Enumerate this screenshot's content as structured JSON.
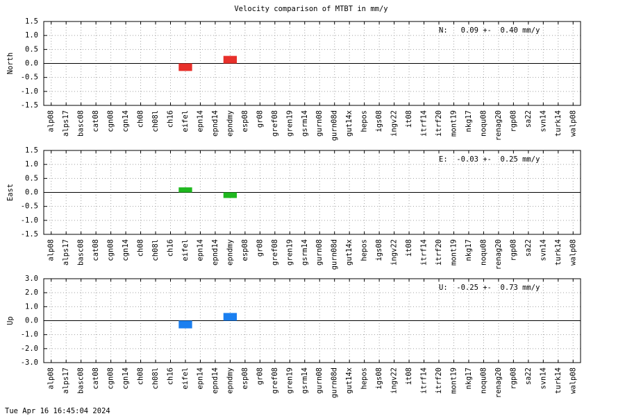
{
  "title": "Velocity comparison of MTBT in mm/y",
  "timestamp": "Tue Apr 16 16:45:04 2024",
  "chart_data": [
    {
      "type": "bar",
      "ylabel": "North",
      "annotation": "N:   0.09 +-  0.40 mm/y",
      "color": "#e8302b",
      "categories": [
        "alp08",
        "alps17",
        "basc08",
        "cat08",
        "cgn08",
        "cgn14",
        "ch08",
        "ch08l",
        "ch16",
        "eifel",
        "epn14",
        "epnd14",
        "epndmy",
        "esp08",
        "gr08",
        "gref08",
        "gren19",
        "gsrm14",
        "gurn08",
        "gurn08d",
        "gut14x",
        "hepos",
        "igs08",
        "ingv22",
        "it08",
        "itrf14",
        "itrf20",
        "mont19",
        "nkg17",
        "noqu08",
        "renag20",
        "rgp08",
        "sa22",
        "svn14",
        "turk14",
        "walp08"
      ],
      "values": [
        null,
        null,
        null,
        null,
        null,
        null,
        null,
        null,
        null,
        -0.27,
        null,
        null,
        0.27,
        null,
        null,
        null,
        null,
        null,
        null,
        null,
        null,
        null,
        null,
        null,
        null,
        null,
        null,
        null,
        null,
        null,
        null,
        null,
        null,
        null,
        null,
        null
      ],
      "ylim": [
        -1.5,
        1.5
      ],
      "yticks": [
        -1.5,
        {
          "value": -1.0,
          "label": "-1.0"
        },
        -0.5,
        {
          "value": 0,
          "label": "0.0"
        },
        0.5,
        {
          "value": 1.0,
          "label": "1.0"
        },
        1.5
      ],
      "grid": true
    },
    {
      "type": "bar",
      "ylabel": "East",
      "annotation": "E:  -0.03 +-  0.25 mm/y",
      "color": "#1fb81f",
      "categories": [
        "alp08",
        "alps17",
        "basc08",
        "cat08",
        "cgn08",
        "cgn14",
        "ch08",
        "ch08l",
        "ch16",
        "eifel",
        "epn14",
        "epnd14",
        "epndmy",
        "esp08",
        "gr08",
        "gref08",
        "gren19",
        "gsrm14",
        "gurn08",
        "gurn08d",
        "gut14x",
        "hepos",
        "igs08",
        "ingv22",
        "it08",
        "itrf14",
        "itrf20",
        "mont19",
        "nkg17",
        "noqu08",
        "renag20",
        "rgp08",
        "sa22",
        "svn14",
        "turk14",
        "walp08"
      ],
      "values": [
        null,
        null,
        null,
        null,
        null,
        null,
        null,
        null,
        null,
        0.18,
        null,
        null,
        -0.2,
        null,
        null,
        null,
        null,
        null,
        null,
        null,
        null,
        null,
        null,
        null,
        null,
        null,
        null,
        null,
        null,
        null,
        null,
        null,
        null,
        null,
        null,
        null
      ],
      "ylim": [
        -1.5,
        1.5
      ],
      "yticks": [
        -1.5,
        {
          "value": -1.0,
          "label": "-1.0"
        },
        -0.5,
        {
          "value": 0,
          "label": "0.0"
        },
        0.5,
        {
          "value": 1.0,
          "label": "1.0"
        },
        1.5
      ],
      "grid": true
    },
    {
      "type": "bar",
      "ylabel": "Up",
      "annotation": "U:  -0.25 +-  0.73 mm/y",
      "color": "#1a7ff0",
      "categories": [
        "alp08",
        "alps17",
        "basc08",
        "cat08",
        "cgn08",
        "cgn14",
        "ch08",
        "ch08l",
        "ch16",
        "eifel",
        "epn14",
        "epnd14",
        "epndmy",
        "esp08",
        "gr08",
        "gref08",
        "gren19",
        "gsrm14",
        "gurn08",
        "gurn08d",
        "gut14x",
        "hepos",
        "igs08",
        "ingv22",
        "it08",
        "itrf14",
        "itrf20",
        "mont19",
        "nkg17",
        "noqu08",
        "renag20",
        "rgp08",
        "sa22",
        "svn14",
        "turk14",
        "walp08"
      ],
      "values": [
        null,
        null,
        null,
        null,
        null,
        null,
        null,
        null,
        null,
        -0.55,
        null,
        null,
        0.55,
        null,
        null,
        null,
        null,
        null,
        null,
        null,
        null,
        null,
        null,
        null,
        null,
        null,
        null,
        null,
        null,
        null,
        null,
        null,
        null,
        null,
        null,
        null
      ],
      "ylim": [
        -3.0,
        3.0
      ],
      "yticks": [
        {
          "value": -3.0,
          "label": "-3.0"
        },
        {
          "value": -2.0,
          "label": "-2.0"
        },
        {
          "value": -1.0,
          "label": "-1.0"
        },
        {
          "value": 0,
          "label": "0.0"
        },
        {
          "value": 1.0,
          "label": "1.0"
        },
        {
          "value": 2.0,
          "label": "2.0"
        },
        {
          "value": 3.0,
          "label": "3.0"
        }
      ],
      "grid": true
    }
  ]
}
